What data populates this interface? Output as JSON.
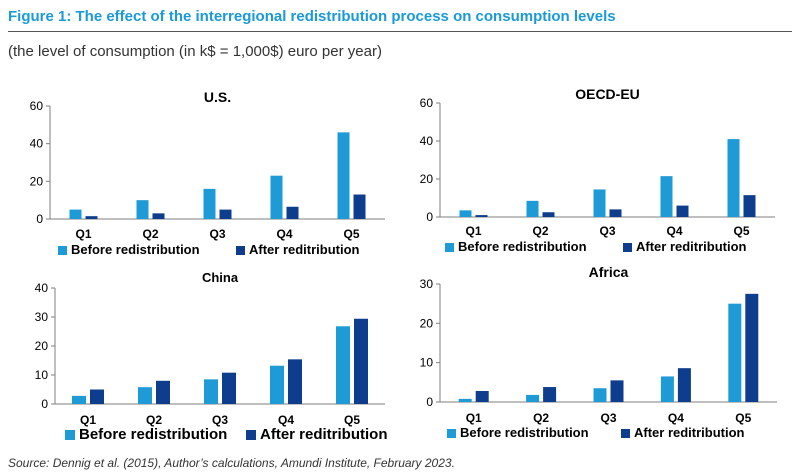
{
  "header": {
    "title": "Figure 1: The effect of the interregional redistribution process on consumption levels",
    "subtitle": "(the level of consumption (in k$ = 1,000$) euro per year)"
  },
  "footer": {
    "source": "Source: Dennig et al. (2015), Author’s calculations, Amundi Institute, February 2023."
  },
  "colors": {
    "before": "#1E9BD7",
    "after": "#0D3D8C",
    "axis": "#7f7f7f"
  },
  "chart_data": [
    {
      "type": "bar",
      "title": "U.S.",
      "categories": [
        "Q1",
        "Q2",
        "Q3",
        "Q4",
        "Q5"
      ],
      "series": [
        {
          "name": "Before redistribution",
          "values": [
            5,
            10,
            16,
            23,
            46
          ]
        },
        {
          "name": "After reditribution",
          "values": [
            1.5,
            3,
            5,
            6.5,
            13
          ]
        }
      ],
      "ylim": [
        0,
        60
      ],
      "yticks": [
        0,
        20,
        40,
        60
      ],
      "xlabel": "",
      "ylabel": "",
      "legend": "bottom"
    },
    {
      "type": "bar",
      "title": "OECD-EU",
      "categories": [
        "Q1",
        "Q2",
        "Q3",
        "Q4",
        "Q5"
      ],
      "series": [
        {
          "name": "Before redistribution",
          "values": [
            3.5,
            8.5,
            14.5,
            21.5,
            41
          ]
        },
        {
          "name": "After reditribution",
          "values": [
            1,
            2.5,
            4,
            6,
            11.5
          ]
        }
      ],
      "ylim": [
        0,
        60
      ],
      "yticks": [
        0,
        20,
        40,
        60
      ],
      "xlabel": "",
      "ylabel": "",
      "legend": "bottom"
    },
    {
      "type": "bar",
      "title": "China",
      "categories": [
        "Q1",
        "Q2",
        "Q3",
        "Q4",
        "Q5"
      ],
      "series": [
        {
          "name": "Before redistribution",
          "values": [
            2.8,
            5.8,
            8.5,
            13.2,
            26.8
          ]
        },
        {
          "name": "After reditribution",
          "values": [
            5,
            8,
            10.8,
            15.4,
            29.4
          ]
        }
      ],
      "ylim": [
        0,
        40
      ],
      "yticks": [
        0,
        10,
        20,
        30,
        40
      ],
      "xlabel": "",
      "ylabel": "",
      "legend": "bottom"
    },
    {
      "type": "bar",
      "title": "Africa",
      "categories": [
        "Q1",
        "Q2",
        "Q3",
        "Q4",
        "Q5"
      ],
      "series": [
        {
          "name": "Before redistribution",
          "values": [
            0.8,
            1.8,
            3.5,
            6.5,
            25
          ]
        },
        {
          "name": "After reditribution",
          "values": [
            2.8,
            3.8,
            5.5,
            8.6,
            27.5
          ]
        }
      ],
      "ylim": [
        0,
        30
      ],
      "yticks": [
        0,
        10,
        20,
        30
      ],
      "xlabel": "",
      "ylabel": "",
      "legend": "bottom"
    }
  ]
}
